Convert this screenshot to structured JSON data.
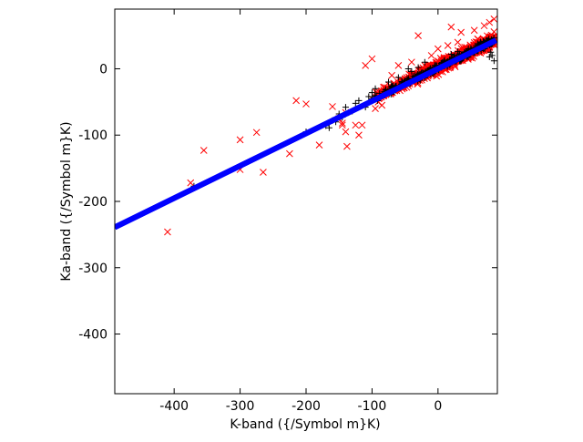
{
  "chart_data": {
    "type": "scatter",
    "title": "",
    "xlabel": "K-band ({/Symbol m}K)",
    "ylabel": "Ka-band ({/Symbol m}K)",
    "xlim": [
      -490,
      90
    ],
    "ylim": [
      -490,
      90
    ],
    "x_ticks": [
      -400,
      -300,
      -200,
      -100,
      0
    ],
    "y_ticks": [
      0,
      -100,
      -200,
      -300,
      -400
    ],
    "grid": false,
    "legend": "none",
    "series": [
      {
        "color": "#ff0000",
        "marker": "x",
        "points": [
          [
            -410,
            -246
          ],
          [
            -355,
            -123
          ],
          [
            -375,
            -172
          ],
          [
            -300,
            -107
          ],
          [
            -275,
            -96
          ],
          [
            -300,
            -152
          ],
          [
            -265,
            -156
          ],
          [
            -225,
            -128
          ],
          [
            -215,
            -48
          ],
          [
            -200,
            -53
          ],
          [
            -180,
            -115
          ],
          [
            -160,
            -57
          ],
          [
            -150,
            -75
          ],
          [
            -145,
            -85
          ],
          [
            -145,
            -82
          ],
          [
            -140,
            -66
          ],
          [
            -140,
            -95
          ],
          [
            -138,
            -117
          ],
          [
            -125,
            -85
          ],
          [
            -120,
            -100
          ],
          [
            -115,
            -85
          ],
          [
            -110,
            5
          ],
          [
            -100,
            15
          ],
          [
            -30,
            50
          ],
          [
            20,
            63
          ],
          [
            15,
            35
          ],
          [
            35,
            55
          ],
          [
            55,
            58
          ],
          [
            78,
            70
          ],
          [
            85,
            75
          ],
          [
            70,
            65
          ],
          [
            0,
            30
          ],
          [
            -60,
            5
          ],
          [
            -80,
            -30
          ],
          [
            -90,
            -45
          ],
          [
            -40,
            10
          ],
          [
            -10,
            20
          ],
          [
            30,
            40
          ],
          [
            60,
            45
          ],
          [
            -70,
            -10
          ],
          [
            -50,
            -20
          ],
          [
            -20,
            5
          ],
          [
            10,
            15
          ],
          [
            40,
            30
          ],
          [
            -85,
            -55
          ],
          [
            -95,
            -60
          ],
          [
            25,
            10
          ],
          [
            50,
            20
          ],
          [
            75,
            30
          ],
          [
            -30,
            -15
          ]
        ],
        "cloud": {
          "x_from": -100,
          "x_to": 85,
          "slope": 0.48,
          "intercept": 3,
          "spread": 14,
          "count": 900
        }
      },
      {
        "color": "#000000",
        "marker": "+",
        "points": [
          [
            -370,
            -177
          ],
          [
            -200,
            -95
          ],
          [
            -170,
            -86
          ],
          [
            -165,
            -89
          ],
          [
            -160,
            -78
          ],
          [
            -155,
            -80
          ],
          [
            -150,
            -68
          ],
          [
            -145,
            -73
          ],
          [
            -140,
            -58
          ],
          [
            -130,
            -64
          ],
          [
            -125,
            -52
          ],
          [
            -120,
            -48
          ],
          [
            -110,
            -58
          ],
          [
            -105,
            -42
          ],
          [
            -100,
            -36
          ],
          [
            -95,
            -30
          ],
          [
            -80,
            -38
          ],
          [
            -75,
            -20
          ],
          [
            -70,
            -26
          ],
          [
            -60,
            -13
          ],
          [
            -50,
            -18
          ],
          [
            -45,
            0
          ],
          [
            -40,
            -4
          ],
          [
            -30,
            2
          ],
          [
            -20,
            10
          ],
          [
            10,
            13
          ],
          [
            20,
            22
          ],
          [
            30,
            26
          ],
          [
            45,
            20
          ],
          [
            50,
            30
          ],
          [
            60,
            38
          ],
          [
            70,
            40
          ],
          [
            78,
            18
          ],
          [
            82,
            20
          ],
          [
            85,
            12
          ],
          [
            80,
            25
          ]
        ],
        "cloud": {
          "x_from": -110,
          "x_to": 85,
          "slope": 0.48,
          "intercept": 2,
          "spread": 9,
          "count": 300
        }
      },
      {
        "color": "#0000ff",
        "marker": "line",
        "x": [
          -490,
          88
        ],
        "y": [
          -239,
          43
        ]
      }
    ]
  }
}
